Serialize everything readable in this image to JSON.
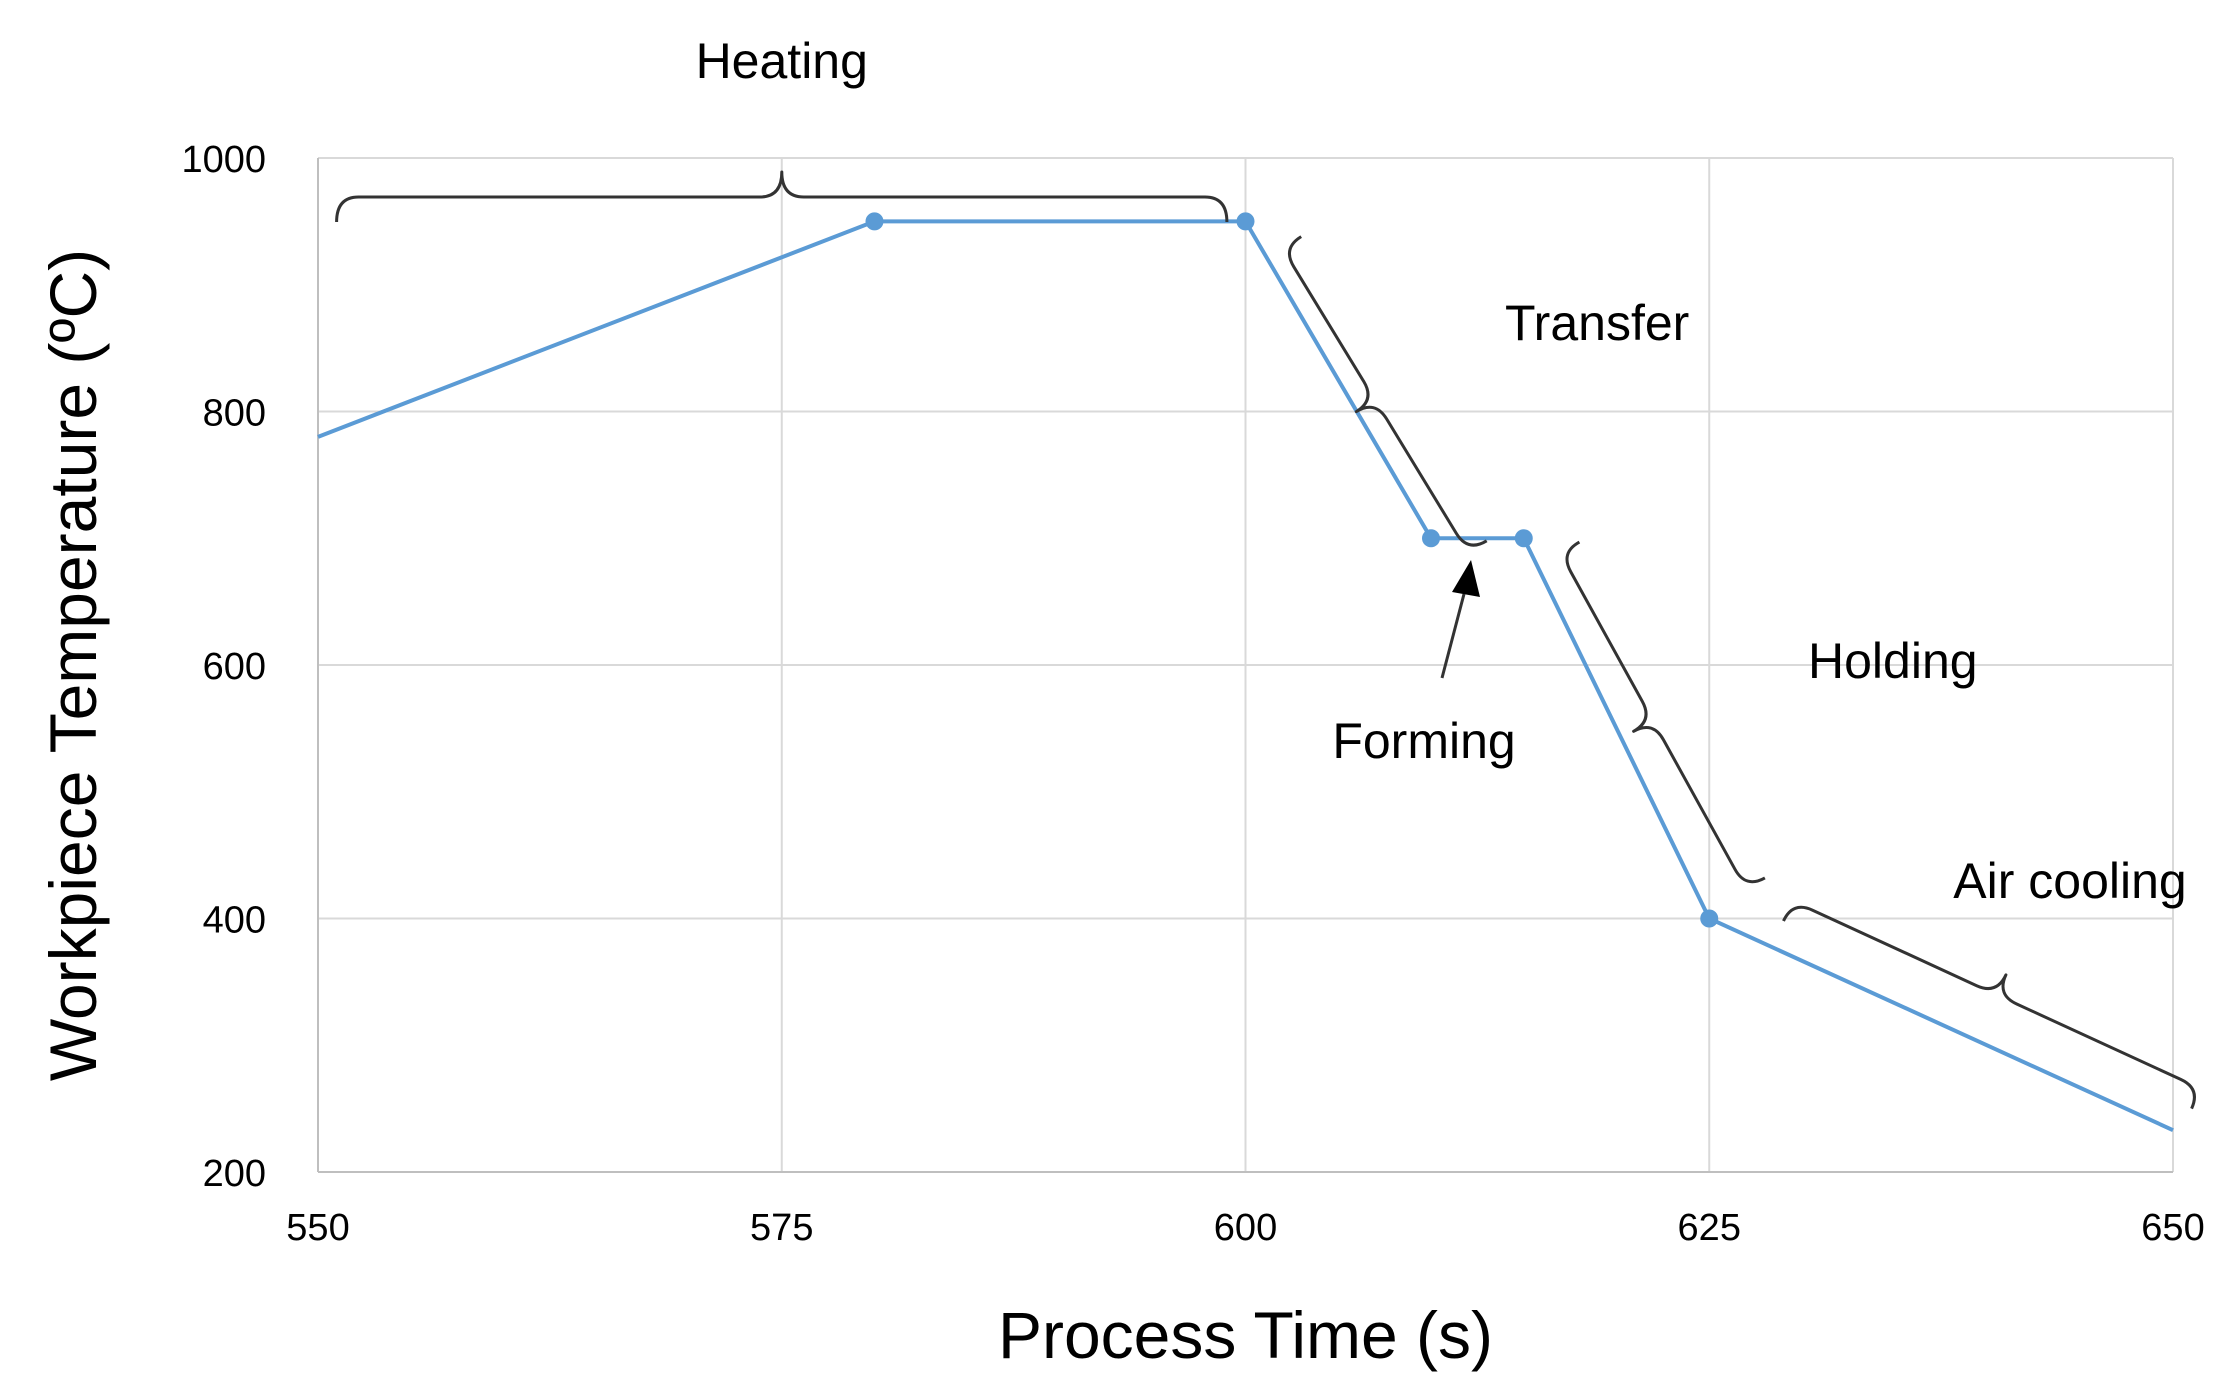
{
  "chart_data": {
    "type": "line",
    "title": "",
    "xlabel": "Process Time (s)",
    "ylabel": "Workpiece Temperature (ºC)",
    "xlim": [
      550,
      650
    ],
    "ylim": [
      200,
      1000
    ],
    "xticks": [
      550,
      575,
      600,
      625,
      650
    ],
    "yticks": [
      200,
      400,
      600,
      800,
      1000
    ],
    "grid": true,
    "legend": "none",
    "series": [
      {
        "color": "#5b9bd5",
        "x": [
          550,
          580,
          600,
          610,
          615,
          625,
          650
        ],
        "y": [
          780,
          950,
          950,
          700,
          700,
          400,
          233
        ],
        "markers": [
          false,
          true,
          true,
          true,
          true,
          true,
          false
        ]
      }
    ],
    "annotations": [
      {
        "text": "Heating",
        "x_start": 551,
        "x_end": 599,
        "y": 985
      },
      {
        "text": "Transfer",
        "x_start": 603,
        "x_end": 613,
        "y_start": 938,
        "y_end": 698
      },
      {
        "text": "Forming",
        "x": 612.5,
        "y": 700
      },
      {
        "text": "Holding",
        "x_start": 618,
        "x_end": 628,
        "y_start": 697,
        "y_end": 432
      },
      {
        "text": "Air cooling",
        "x_start": 629,
        "x_end": 651,
        "y_start": 398,
        "y_end": 250
      }
    ]
  }
}
